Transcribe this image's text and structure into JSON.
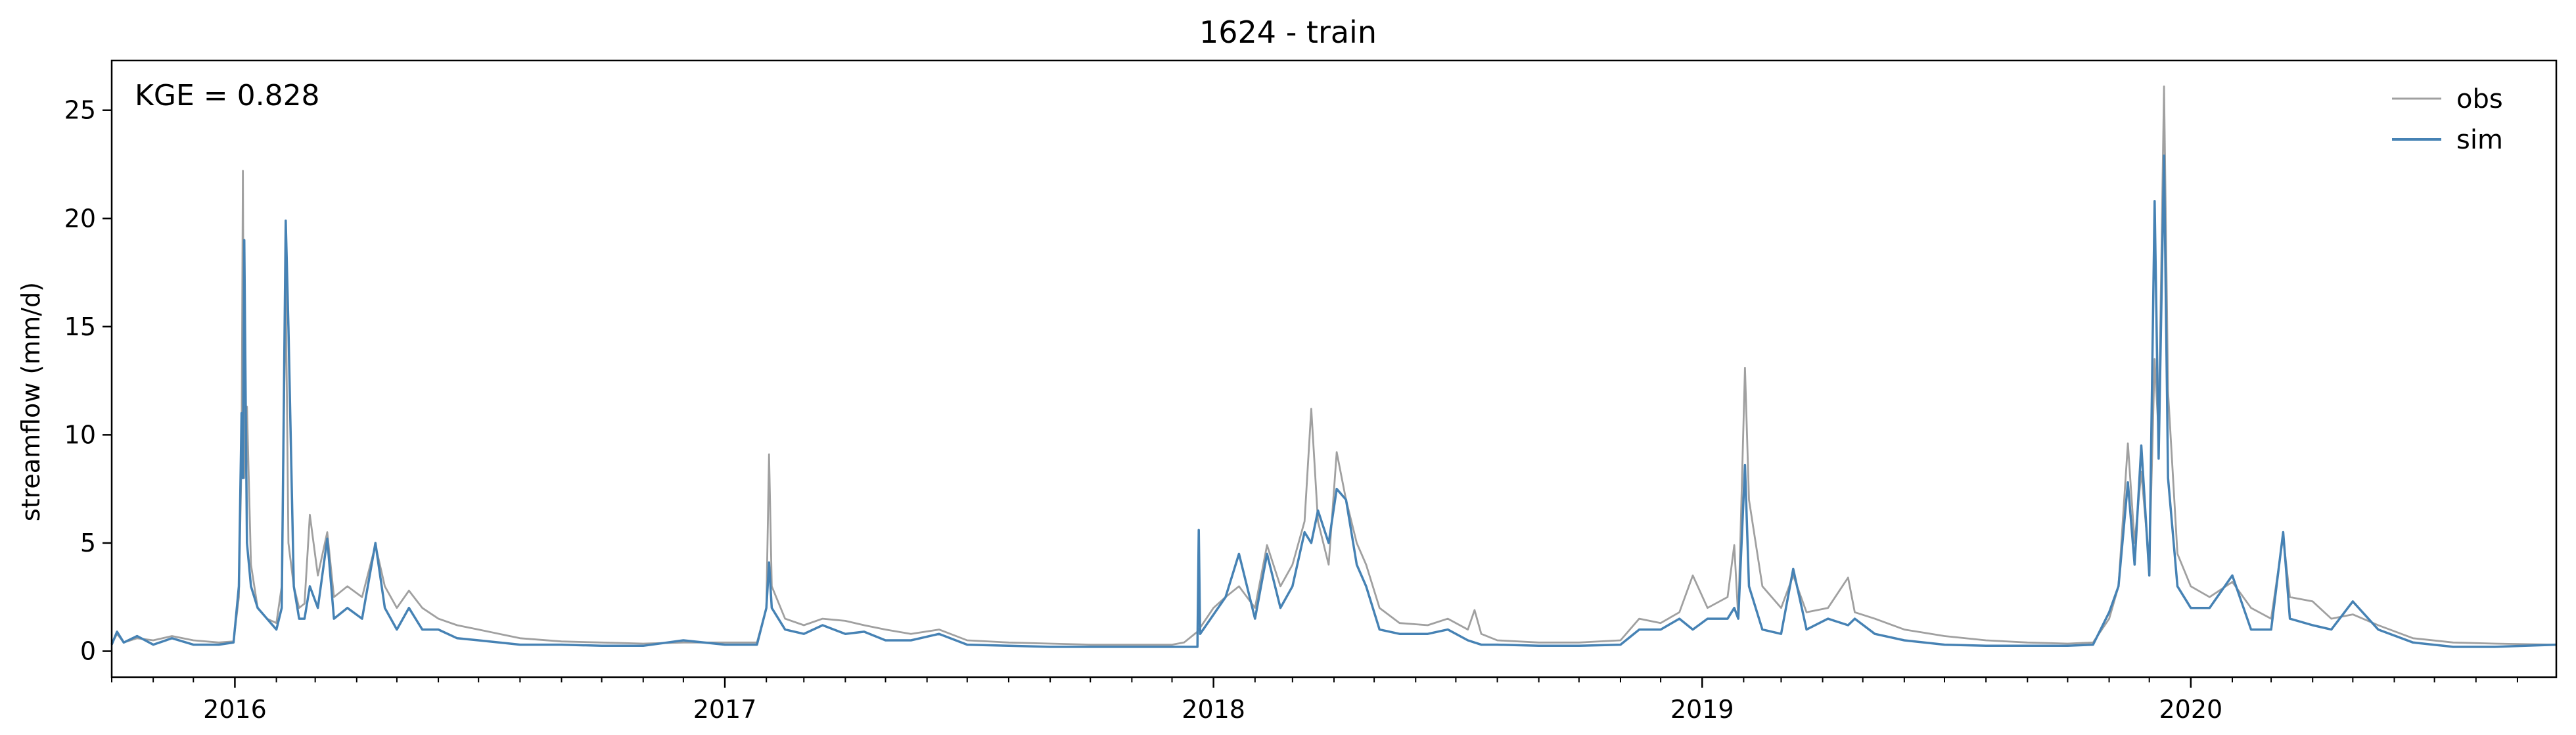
{
  "chart_data": {
    "type": "line",
    "title": "1624 - train",
    "xlabel": "",
    "ylabel": "streamflow (mm/d)",
    "annotation": "KGE = 0.828",
    "legend_position": "top-right",
    "grid": false,
    "xlim": [
      "2015-10-01",
      "2020-09-30"
    ],
    "ylim": [
      -1.2,
      27.3
    ],
    "yticks": [
      0,
      5,
      10,
      15,
      20,
      25
    ],
    "xticks": [
      {
        "date": "2016-01-01",
        "label": "2016"
      },
      {
        "date": "2017-01-01",
        "label": "2017"
      },
      {
        "date": "2018-01-01",
        "label": "2018"
      },
      {
        "date": "2019-01-01",
        "label": "2019"
      },
      {
        "date": "2020-01-01",
        "label": "2020"
      }
    ],
    "series": [
      {
        "name": "obs",
        "color": "#a0a0a0",
        "points": [
          [
            "2015-10-01",
            0.35
          ],
          [
            "2015-10-05",
            0.8
          ],
          [
            "2015-10-10",
            0.4
          ],
          [
            "2015-10-20",
            0.6
          ],
          [
            "2015-11-01",
            0.5
          ],
          [
            "2015-11-15",
            0.7
          ],
          [
            "2015-12-01",
            0.5
          ],
          [
            "2015-12-20",
            0.4
          ],
          [
            "2015-12-31",
            0.45
          ],
          [
            "2016-01-04",
            2.5
          ],
          [
            "2016-01-06",
            9.0
          ],
          [
            "2016-01-07",
            22.2
          ],
          [
            "2016-01-08",
            8.0
          ],
          [
            "2016-01-10",
            11.3
          ],
          [
            "2016-01-13",
            4.0
          ],
          [
            "2016-01-18",
            2.0
          ],
          [
            "2016-01-25",
            1.5
          ],
          [
            "2016-02-01",
            1.3
          ],
          [
            "2016-02-05",
            3.0
          ],
          [
            "2016-02-08",
            17.0
          ],
          [
            "2016-02-10",
            5.0
          ],
          [
            "2016-02-14",
            3.0
          ],
          [
            "2016-02-18",
            2.0
          ],
          [
            "2016-02-22",
            2.2
          ],
          [
            "2016-02-26",
            6.3
          ],
          [
            "2016-03-03",
            3.5
          ],
          [
            "2016-03-10",
            5.5
          ],
          [
            "2016-03-15",
            2.5
          ],
          [
            "2016-03-25",
            3.0
          ],
          [
            "2016-04-05",
            2.5
          ],
          [
            "2016-04-15",
            4.9
          ],
          [
            "2016-04-22",
            3.0
          ],
          [
            "2016-05-01",
            2.0
          ],
          [
            "2016-05-10",
            2.8
          ],
          [
            "2016-05-20",
            2.0
          ],
          [
            "2016-06-01",
            1.5
          ],
          [
            "2016-06-15",
            1.2
          ],
          [
            "2016-07-01",
            1.0
          ],
          [
            "2016-08-01",
            0.6
          ],
          [
            "2016-09-01",
            0.45
          ],
          [
            "2016-10-01",
            0.4
          ],
          [
            "2016-11-01",
            0.35
          ],
          [
            "2016-12-01",
            0.4
          ],
          [
            "2017-01-01",
            0.4
          ],
          [
            "2017-01-25",
            0.4
          ],
          [
            "2017-02-01",
            2.0
          ],
          [
            "2017-02-03",
            9.1
          ],
          [
            "2017-02-05",
            3.0
          ],
          [
            "2017-02-15",
            1.5
          ],
          [
            "2017-03-01",
            1.2
          ],
          [
            "2017-03-15",
            1.5
          ],
          [
            "2017-04-01",
            1.4
          ],
          [
            "2017-04-15",
            1.2
          ],
          [
            "2017-05-01",
            1.0
          ],
          [
            "2017-05-20",
            0.8
          ],
          [
            "2017-06-10",
            1.0
          ],
          [
            "2017-07-01",
            0.5
          ],
          [
            "2017-08-01",
            0.4
          ],
          [
            "2017-09-01",
            0.35
          ],
          [
            "2017-10-01",
            0.3
          ],
          [
            "2017-11-01",
            0.3
          ],
          [
            "2017-12-01",
            0.3
          ],
          [
            "2017-12-10",
            0.4
          ],
          [
            "2017-12-20",
            0.9
          ],
          [
            "2018-01-01",
            2.0
          ],
          [
            "2018-01-10",
            2.5
          ],
          [
            "2018-01-20",
            3.0
          ],
          [
            "2018-02-01",
            2.0
          ],
          [
            "2018-02-10",
            4.9
          ],
          [
            "2018-02-20",
            3.0
          ],
          [
            "2018-03-01",
            4.0
          ],
          [
            "2018-03-10",
            6.0
          ],
          [
            "2018-03-15",
            11.2
          ],
          [
            "2018-03-20",
            6.0
          ],
          [
            "2018-03-28",
            4.0
          ],
          [
            "2018-04-03",
            9.2
          ],
          [
            "2018-04-10",
            7.0
          ],
          [
            "2018-04-18",
            5.0
          ],
          [
            "2018-04-25",
            4.0
          ],
          [
            "2018-05-05",
            2.0
          ],
          [
            "2018-05-20",
            1.3
          ],
          [
            "2018-06-10",
            1.2
          ],
          [
            "2018-06-25",
            1.5
          ],
          [
            "2018-07-10",
            1.0
          ],
          [
            "2018-07-15",
            1.9
          ],
          [
            "2018-07-20",
            0.8
          ],
          [
            "2018-08-01",
            0.5
          ],
          [
            "2018-09-01",
            0.4
          ],
          [
            "2018-10-01",
            0.4
          ],
          [
            "2018-11-01",
            0.5
          ],
          [
            "2018-11-15",
            1.5
          ],
          [
            "2018-12-01",
            1.3
          ],
          [
            "2018-12-15",
            1.8
          ],
          [
            "2018-12-25",
            3.5
          ],
          [
            "2019-01-05",
            2.0
          ],
          [
            "2019-01-20",
            2.5
          ],
          [
            "2019-01-25",
            4.9
          ],
          [
            "2019-01-28",
            1.5
          ],
          [
            "2019-02-02",
            13.1
          ],
          [
            "2019-02-05",
            7.0
          ],
          [
            "2019-02-15",
            3.0
          ],
          [
            "2019-03-01",
            2.0
          ],
          [
            "2019-03-10",
            3.5
          ],
          [
            "2019-03-20",
            1.8
          ],
          [
            "2019-04-05",
            2.0
          ],
          [
            "2019-04-20",
            3.4
          ],
          [
            "2019-04-25",
            1.8
          ],
          [
            "2019-05-10",
            1.5
          ],
          [
            "2019-06-01",
            1.0
          ],
          [
            "2019-07-01",
            0.7
          ],
          [
            "2019-08-01",
            0.5
          ],
          [
            "2019-09-01",
            0.4
          ],
          [
            "2019-10-01",
            0.35
          ],
          [
            "2019-10-20",
            0.4
          ],
          [
            "2019-11-01",
            1.5
          ],
          [
            "2019-11-08",
            3.0
          ],
          [
            "2019-11-15",
            9.6
          ],
          [
            "2019-11-20",
            5.0
          ],
          [
            "2019-11-25",
            8.3
          ],
          [
            "2019-12-01",
            4.0
          ],
          [
            "2019-12-05",
            13.5
          ],
          [
            "2019-12-08",
            10.0
          ],
          [
            "2019-12-12",
            26.1
          ],
          [
            "2019-12-15",
            12.0
          ],
          [
            "2019-12-22",
            4.5
          ],
          [
            "2020-01-01",
            3.0
          ],
          [
            "2020-01-15",
            2.5
          ],
          [
            "2020-02-01",
            3.2
          ],
          [
            "2020-02-15",
            2.0
          ],
          [
            "2020-03-01",
            1.5
          ],
          [
            "2020-03-10",
            5.3
          ],
          [
            "2020-03-15",
            2.5
          ],
          [
            "2020-04-01",
            2.3
          ],
          [
            "2020-04-15",
            1.5
          ],
          [
            "2020-05-01",
            1.7
          ],
          [
            "2020-05-20",
            1.2
          ],
          [
            "2020-06-15",
            0.6
          ],
          [
            "2020-07-15",
            0.4
          ],
          [
            "2020-08-15",
            0.35
          ],
          [
            "2020-09-30",
            0.3
          ]
        ]
      },
      {
        "name": "sim",
        "color": "#4682b4",
        "points": [
          [
            "2015-10-01",
            0.3
          ],
          [
            "2015-10-05",
            0.9
          ],
          [
            "2015-10-10",
            0.4
          ],
          [
            "2015-10-20",
            0.7
          ],
          [
            "2015-11-01",
            0.3
          ],
          [
            "2015-11-15",
            0.6
          ],
          [
            "2015-12-01",
            0.3
          ],
          [
            "2015-12-20",
            0.3
          ],
          [
            "2015-12-31",
            0.4
          ],
          [
            "2016-01-04",
            3.0
          ],
          [
            "2016-01-06",
            11.0
          ],
          [
            "2016-01-07",
            8.0
          ],
          [
            "2016-01-08",
            19.0
          ],
          [
            "2016-01-10",
            5.0
          ],
          [
            "2016-01-13",
            3.0
          ],
          [
            "2016-01-18",
            2.0
          ],
          [
            "2016-01-25",
            1.5
          ],
          [
            "2016-02-01",
            1.0
          ],
          [
            "2016-02-05",
            2.0
          ],
          [
            "2016-02-08",
            19.9
          ],
          [
            "2016-02-10",
            15.0
          ],
          [
            "2016-02-14",
            3.0
          ],
          [
            "2016-02-18",
            1.5
          ],
          [
            "2016-02-22",
            1.5
          ],
          [
            "2016-02-26",
            3.0
          ],
          [
            "2016-03-03",
            2.0
          ],
          [
            "2016-03-10",
            5.2
          ],
          [
            "2016-03-15",
            1.5
          ],
          [
            "2016-03-25",
            2.0
          ],
          [
            "2016-04-05",
            1.5
          ],
          [
            "2016-04-15",
            5.0
          ],
          [
            "2016-04-22",
            2.0
          ],
          [
            "2016-05-01",
            1.0
          ],
          [
            "2016-05-10",
            2.0
          ],
          [
            "2016-05-20",
            1.0
          ],
          [
            "2016-06-01",
            1.0
          ],
          [
            "2016-06-15",
            0.6
          ],
          [
            "2016-07-01",
            0.5
          ],
          [
            "2016-08-01",
            0.3
          ],
          [
            "2016-09-01",
            0.3
          ],
          [
            "2016-10-01",
            0.25
          ],
          [
            "2016-11-01",
            0.25
          ],
          [
            "2016-12-01",
            0.5
          ],
          [
            "2017-01-01",
            0.3
          ],
          [
            "2017-01-25",
            0.3
          ],
          [
            "2017-02-01",
            2.0
          ],
          [
            "2017-02-03",
            4.1
          ],
          [
            "2017-02-05",
            2.0
          ],
          [
            "2017-02-15",
            1.0
          ],
          [
            "2017-03-01",
            0.8
          ],
          [
            "2017-03-15",
            1.2
          ],
          [
            "2017-04-01",
            0.8
          ],
          [
            "2017-04-15",
            0.9
          ],
          [
            "2017-05-01",
            0.5
          ],
          [
            "2017-05-20",
            0.5
          ],
          [
            "2017-06-10",
            0.8
          ],
          [
            "2017-07-01",
            0.3
          ],
          [
            "2017-08-01",
            0.25
          ],
          [
            "2017-09-01",
            0.2
          ],
          [
            "2017-10-01",
            0.2
          ],
          [
            "2017-11-01",
            0.2
          ],
          [
            "2017-12-01",
            0.2
          ],
          [
            "2017-12-10",
            0.2
          ],
          [
            "2017-12-20",
            0.2
          ],
          [
            "2017-12-21",
            5.6
          ],
          [
            "2017-12-22",
            0.8
          ],
          [
            "2018-01-10",
            2.5
          ],
          [
            "2018-01-20",
            4.5
          ],
          [
            "2018-02-01",
            1.5
          ],
          [
            "2018-02-10",
            4.5
          ],
          [
            "2018-02-20",
            2.0
          ],
          [
            "2018-03-01",
            3.0
          ],
          [
            "2018-03-10",
            5.5
          ],
          [
            "2018-03-15",
            5.0
          ],
          [
            "2018-03-20",
            6.5
          ],
          [
            "2018-03-28",
            5.0
          ],
          [
            "2018-04-03",
            7.5
          ],
          [
            "2018-04-10",
            7.0
          ],
          [
            "2018-04-18",
            4.0
          ],
          [
            "2018-04-25",
            3.0
          ],
          [
            "2018-05-05",
            1.0
          ],
          [
            "2018-05-20",
            0.8
          ],
          [
            "2018-06-10",
            0.8
          ],
          [
            "2018-06-25",
            1.0
          ],
          [
            "2018-07-10",
            0.5
          ],
          [
            "2018-07-15",
            0.4
          ],
          [
            "2018-07-20",
            0.3
          ],
          [
            "2018-08-01",
            0.3
          ],
          [
            "2018-09-01",
            0.25
          ],
          [
            "2018-10-01",
            0.25
          ],
          [
            "2018-11-01",
            0.3
          ],
          [
            "2018-11-15",
            1.0
          ],
          [
            "2018-12-01",
            1.0
          ],
          [
            "2018-12-15",
            1.5
          ],
          [
            "2018-12-25",
            1.0
          ],
          [
            "2019-01-05",
            1.5
          ],
          [
            "2019-01-20",
            1.5
          ],
          [
            "2019-01-25",
            2.0
          ],
          [
            "2019-01-28",
            1.5
          ],
          [
            "2019-02-02",
            8.6
          ],
          [
            "2019-02-05",
            3.0
          ],
          [
            "2019-02-15",
            1.0
          ],
          [
            "2019-03-01",
            0.8
          ],
          [
            "2019-03-10",
            3.8
          ],
          [
            "2019-03-20",
            1.0
          ],
          [
            "2019-04-05",
            1.5
          ],
          [
            "2019-04-20",
            1.2
          ],
          [
            "2019-04-25",
            1.5
          ],
          [
            "2019-05-10",
            0.8
          ],
          [
            "2019-06-01",
            0.5
          ],
          [
            "2019-07-01",
            0.3
          ],
          [
            "2019-08-01",
            0.25
          ],
          [
            "2019-09-01",
            0.25
          ],
          [
            "2019-10-01",
            0.25
          ],
          [
            "2019-10-20",
            0.3
          ],
          [
            "2019-11-01",
            1.8
          ],
          [
            "2019-11-08",
            3.0
          ],
          [
            "2019-11-15",
            7.8
          ],
          [
            "2019-11-20",
            4.0
          ],
          [
            "2019-11-25",
            9.5
          ],
          [
            "2019-12-01",
            3.5
          ],
          [
            "2019-12-05",
            20.8
          ],
          [
            "2019-12-08",
            8.9
          ],
          [
            "2019-12-12",
            22.9
          ],
          [
            "2019-12-15",
            8.0
          ],
          [
            "2019-12-22",
            3.0
          ],
          [
            "2020-01-01",
            2.0
          ],
          [
            "2020-01-15",
            2.0
          ],
          [
            "2020-02-01",
            3.5
          ],
          [
            "2020-02-15",
            1.0
          ],
          [
            "2020-03-01",
            1.0
          ],
          [
            "2020-03-10",
            5.5
          ],
          [
            "2020-03-15",
            1.5
          ],
          [
            "2020-04-01",
            1.2
          ],
          [
            "2020-04-15",
            1.0
          ],
          [
            "2020-05-01",
            2.3
          ],
          [
            "2020-05-20",
            1.0
          ],
          [
            "2020-06-15",
            0.4
          ],
          [
            "2020-07-15",
            0.2
          ],
          [
            "2020-08-15",
            0.2
          ],
          [
            "2020-09-30",
            0.3
          ]
        ]
      }
    ]
  }
}
